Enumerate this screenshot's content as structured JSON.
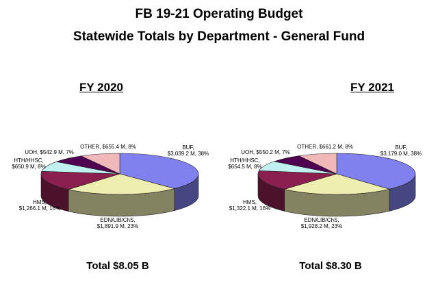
{
  "title": "FB 19-21 Operating Budget",
  "subtitle": "Statewide Totals by Department - General Fund",
  "chart_data": [
    {
      "type": "pie",
      "title": "FY 2020",
      "total_label": "Total $8.05 B",
      "slices": [
        {
          "name": "BUF",
          "label_line1": "BUF,",
          "label_line2": "$3,039.2 M, 38%",
          "value": 3039.2,
          "percent": 38,
          "color": "#8080ee"
        },
        {
          "name": "EDN/LIB/ChS",
          "label_line1": "EDN/LIB/ChS,",
          "label_line2": "$1,891.9 M, 23%",
          "value": 1891.9,
          "percent": 23,
          "color": "#eeeeb0"
        },
        {
          "name": "HMS",
          "label_line1": "HMS,",
          "label_line2": "$1,266.1 M, 16%",
          "value": 1266.1,
          "percent": 16,
          "color": "#8b2050"
        },
        {
          "name": "HTH/HHSC",
          "label_line1": "HTH/HHSC,",
          "label_line2": "$650.9 M, 8%",
          "value": 650.9,
          "percent": 8,
          "color": "#c0f0f0"
        },
        {
          "name": "UOH",
          "label_line1": "UOH, $542.9 M, 7%",
          "label_line2": "",
          "value": 542.9,
          "percent": 7,
          "color": "#500050"
        },
        {
          "name": "OTHER",
          "label_line1": "OTHER, $655.4 M, 8%",
          "label_line2": "",
          "value": 655.4,
          "percent": 8,
          "color": "#f0b8b8"
        }
      ]
    },
    {
      "type": "pie",
      "title": "FY 2021",
      "total_label": "Total $8.30 B",
      "slices": [
        {
          "name": "BUF",
          "label_line1": "BUF,",
          "label_line2": "$3,179.0 M, 38%",
          "value": 3179.0,
          "percent": 38,
          "color": "#8080ee"
        },
        {
          "name": "EDN/LIB/ChS",
          "label_line1": "EDN/LIB/ChS,",
          "label_line2": "$1,928.2 M, 23%",
          "value": 1928.2,
          "percent": 23,
          "color": "#eeeeb0"
        },
        {
          "name": "HMS",
          "label_line1": "HMS,",
          "label_line2": "$1,322.1 M, 16%",
          "value": 1322.1,
          "percent": 16,
          "color": "#8b2050"
        },
        {
          "name": "HTH/HHSC",
          "label_line1": "HTH/HHSC,",
          "label_line2": "$654.5 M, 8%",
          "value": 654.5,
          "percent": 8,
          "color": "#c0f0f0"
        },
        {
          "name": "UOH",
          "label_line1": "UOH, $550.2 M, 7%",
          "label_line2": "",
          "value": 550.2,
          "percent": 7,
          "color": "#500050"
        },
        {
          "name": "OTHER",
          "label_line1": "OTHER, $661.2 M, 8%",
          "label_line2": "",
          "value": 661.2,
          "percent": 8,
          "color": "#f0b8b8"
        }
      ]
    }
  ]
}
